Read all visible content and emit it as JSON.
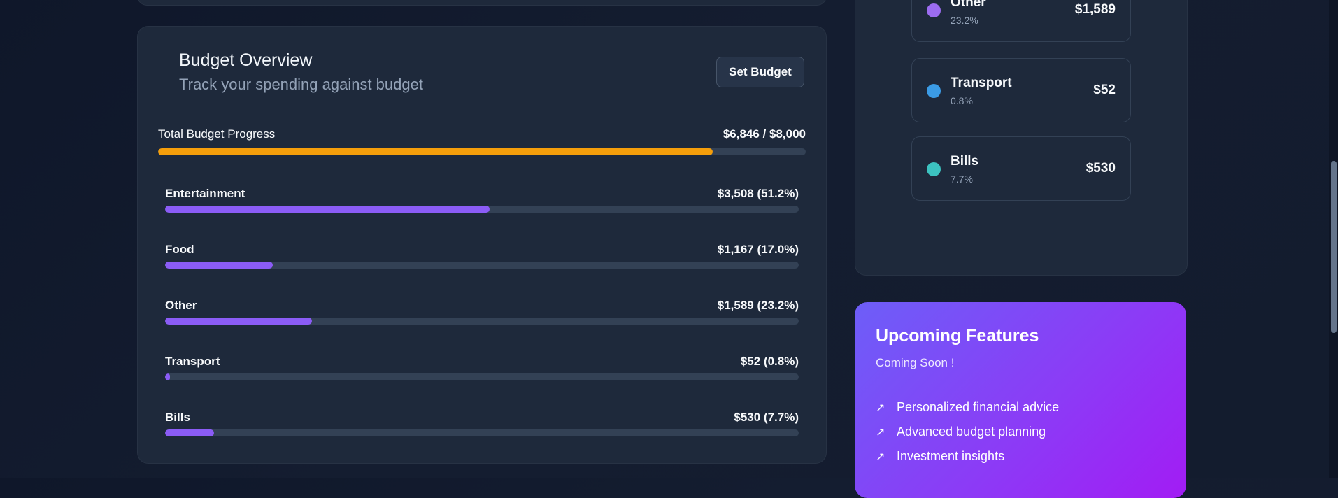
{
  "budget": {
    "title": "Budget Overview",
    "subtitle": "Track your spending against budget",
    "set_budget_label": "Set Budget",
    "total": {
      "label": "Total Budget Progress",
      "amount_text": "$6,846 / $8,000",
      "progress": 0.856,
      "color": "#f59e0b"
    },
    "categories": [
      {
        "name": "Entertainment",
        "amount_text": "$3,508 (51.2%)",
        "progress": 0.512
      },
      {
        "name": "Food",
        "amount_text": "$1,167 (17.0%)",
        "progress": 0.17
      },
      {
        "name": "Other",
        "amount_text": "$1,589 (23.2%)",
        "progress": 0.232
      },
      {
        "name": "Transport",
        "amount_text": "$52 (0.8%)",
        "progress": 0.008
      },
      {
        "name": "Bills",
        "amount_text": "$530 (7.7%)",
        "progress": 0.077
      }
    ],
    "category_bar_color": "#8b5cf6"
  },
  "legend": {
    "items": [
      {
        "name": "Other",
        "percent": "23.2%",
        "amount": "$1,589",
        "color": "#9c6cf0"
      },
      {
        "name": "Transport",
        "percent": "0.8%",
        "amount": "$52",
        "color": "#3b9be5"
      },
      {
        "name": "Bills",
        "percent": "7.7%",
        "amount": "$530",
        "color": "#3cc2c0"
      }
    ]
  },
  "features": {
    "title": "Upcoming Features",
    "subtitle": "Coming Soon !",
    "icon": "arrow-up-right-icon",
    "items": [
      "Personalized financial advice",
      "Advanced budget planning",
      "Investment insights"
    ]
  }
}
